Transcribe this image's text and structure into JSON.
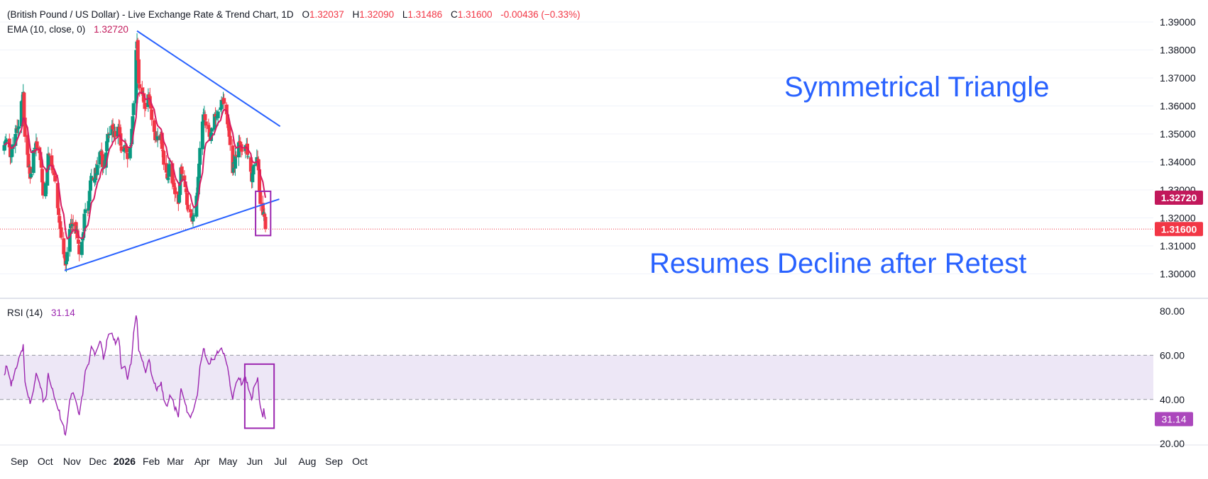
{
  "header": {
    "title": "(British Pound / US Dollar) - Live Exchange Rate & Trend Chart, 1D",
    "o_label": "O",
    "o_value": "1.32037",
    "h_label": "H",
    "h_value": "1.32090",
    "l_label": "L",
    "l_value": "1.31486",
    "c_label": "C",
    "c_value": "1.31600",
    "change": "-0.00436 (−0.33%)",
    "ema_label": "EMA (10, close, 0)",
    "ema_value": "1.32720",
    "rsi_label": "RSI (14)",
    "rsi_value": "31.14"
  },
  "annotations": {
    "triangle": "Symmetrical Triangle",
    "decline": "Resumes Decline after Retest"
  },
  "price_tags": {
    "ema": "1.32720",
    "last": "1.31600"
  },
  "rsi_tag": "31.14",
  "colors": {
    "up": "#089981",
    "down": "#F23645",
    "ema": "#D81B60",
    "trendline": "#2962FF",
    "rsi": "#9C27B0",
    "rsi_band": "#EDE7F6",
    "ema_tag": "#C2185B",
    "last_tag": "#F23645",
    "box": "#9C27B0"
  },
  "chart_data": [
    {
      "type": "candlestick",
      "title": "(British Pound / US Dollar) - Live Exchange Rate & Trend Chart, 1D",
      "y_axis": {
        "ticks": [
          "1.30000",
          "1.31000",
          "1.32000",
          "1.33000",
          "1.34000",
          "1.35000",
          "1.36000",
          "1.37000",
          "1.38000",
          "1.39000"
        ],
        "range": [
          1.295,
          1.3925
        ]
      },
      "x_axis": {
        "ticks": [
          "Sep",
          "Oct",
          "Nov",
          "Dec",
          "2026",
          "Feb",
          "Mar",
          "Apr",
          "May",
          "Jun",
          "Jul",
          "Aug",
          "Sep",
          "Oct"
        ]
      },
      "ema_period": 10,
      "last_close": 1.316,
      "ema_last": 1.3272,
      "trendlines": [
        {
          "name": "upper",
          "from": [
            "Jan 27 2026",
            1.3868
          ],
          "to": [
            "Jul 12 2026",
            1.3527
          ]
        },
        {
          "name": "lower",
          "from": [
            "Nov 4 2025",
            1.3012
          ],
          "to": [
            "Jul 11 2026",
            1.3267
          ]
        }
      ],
      "close_anchors": [
        [
          "Aug 26 2025",
          1.346
        ],
        [
          "Aug 29 2025",
          1.348
        ],
        [
          "Sep 3 2025",
          1.342
        ],
        [
          "Sep 8 2025",
          1.35
        ],
        [
          "Sep 11 2025",
          1.352
        ],
        [
          "Sep 16 2025",
          1.362
        ],
        [
          "Sep 17 2025",
          1.365
        ],
        [
          "Sep 19 2025",
          1.349
        ],
        [
          "Sep 25 2025",
          1.334
        ],
        [
          "Sep 30 2025",
          1.345
        ],
        [
          "Oct 2 2025",
          1.347
        ],
        [
          "Oct 8 2025",
          1.338
        ],
        [
          "Oct 10 2025",
          1.328
        ],
        [
          "Oct 14 2025",
          1.332
        ],
        [
          "Oct 16 2025",
          1.343
        ],
        [
          "Oct 21 2025",
          1.337
        ],
        [
          "Oct 24 2025",
          1.333
        ],
        [
          "Oct 28 2025",
          1.321
        ],
        [
          "Nov 3 2025",
          1.307
        ],
        [
          "Nov 5 2025",
          1.303
        ],
        [
          "Nov 10 2025",
          1.316
        ],
        [
          "Nov 14 2025",
          1.318
        ],
        [
          "Nov 18 2025",
          1.316
        ],
        [
          "Nov 21 2025",
          1.307
        ],
        [
          "Nov 25 2025",
          1.313
        ],
        [
          "Nov 28 2025",
          1.323
        ],
        [
          "Dec 2 2025",
          1.326
        ],
        [
          "Dec 5 2025",
          1.335
        ],
        [
          "Dec 9 2025",
          1.334
        ],
        [
          "Dec 12 2025",
          1.339
        ],
        [
          "Dec 16 2025",
          1.344
        ],
        [
          "Dec 19 2025",
          1.338
        ],
        [
          "Dec 24 2025",
          1.35
        ],
        [
          "Dec 29 2025",
          1.353
        ],
        [
          "Jan 2 2026",
          1.349
        ],
        [
          "Jan 6 2026",
          1.352
        ],
        [
          "Jan 9 2026",
          1.344
        ],
        [
          "Jan 13 2026",
          1.346
        ],
        [
          "Jan 16 2026",
          1.341
        ],
        [
          "Jan 20 2026",
          1.346
        ],
        [
          "Jan 23 2026",
          1.361
        ],
        [
          "Jan 26 2026",
          1.38
        ],
        [
          "Jan 27 2026",
          1.383
        ],
        [
          "Jan 29 2026",
          1.368
        ],
        [
          "Feb 3 2026",
          1.364
        ],
        [
          "Feb 6 2026",
          1.359
        ],
        [
          "Feb 10 2026",
          1.363
        ],
        [
          "Feb 13 2026",
          1.355
        ],
        [
          "Feb 18 2026",
          1.348
        ],
        [
          "Feb 24 2026",
          1.35
        ],
        [
          "Feb 27 2026",
          1.339
        ],
        [
          "Mar 3 2026",
          1.334
        ],
        [
          "Mar 6 2026",
          1.339
        ],
        [
          "Mar 11 2026",
          1.331
        ],
        [
          "Mar 16 2026",
          1.325
        ],
        [
          "Mar 19 2026",
          1.338
        ],
        [
          "Mar 24 2026",
          1.331
        ],
        [
          "Mar 27 2026",
          1.323
        ],
        [
          "Mar 31 2026",
          1.32
        ],
        [
          "Apr 3 2026",
          1.321
        ],
        [
          "Apr 7 2026",
          1.329
        ],
        [
          "Apr 10 2026",
          1.345
        ],
        [
          "Apr 14 2026",
          1.357
        ],
        [
          "Apr 17 2026",
          1.353
        ],
        [
          "Apr 21 2026",
          1.349
        ],
        [
          "Apr 24 2026",
          1.352
        ],
        [
          "Apr 28 2026",
          1.356
        ],
        [
          "May 1 2026",
          1.358
        ],
        [
          "May 6 2026",
          1.362
        ],
        [
          "May 11 2026",
          1.357
        ],
        [
          "May 14 2026",
          1.349
        ],
        [
          "May 18 2026",
          1.336
        ],
        [
          "May 21 2026",
          1.342
        ],
        [
          "May 26 2026",
          1.347
        ],
        [
          "May 29 2026",
          1.344
        ],
        [
          "Jun 2 2026",
          1.346
        ],
        [
          "Jun 5 2026",
          1.342
        ],
        [
          "Jun 9 2026",
          1.333
        ],
        [
          "Jun 12 2026",
          1.339
        ],
        [
          "Jun 16 2026",
          1.341
        ],
        [
          "Jun 17 2026",
          1.337
        ],
        [
          "Jun 19 2026",
          1.325
        ],
        [
          "Jun 22 2026",
          1.321
        ],
        [
          "Jun 23 2026",
          1.322
        ],
        [
          "Jun 24 2026",
          1.3204
        ],
        [
          "Jun 25 2026",
          1.316
        ]
      ]
    },
    {
      "type": "line",
      "title": "RSI (14)",
      "y_axis": {
        "ticks": [
          "20.00",
          "40.00",
          "60.00",
          "80.00"
        ],
        "range": [
          18,
          84
        ]
      },
      "bands": [
        40,
        60
      ],
      "last_value": 31.14,
      "series": [
        {
          "name": "RSI (14)",
          "values": [
            [
              "Aug 26 2025",
              51
            ],
            [
              "Aug 29 2025",
              55
            ],
            [
              "Sep 3 2025",
              46
            ],
            [
              "Sep 8 2025",
              54
            ],
            [
              "Sep 11 2025",
              57
            ],
            [
              "Sep 16 2025",
              62
            ],
            [
              "Sep 17 2025",
              65
            ],
            [
              "Sep 19 2025",
              48
            ],
            [
              "Sep 25 2025",
              38
            ],
            [
              "Sep 30 2025",
              47
            ],
            [
              "Oct 2 2025",
              52
            ],
            [
              "Oct 8 2025",
              45
            ],
            [
              "Oct 10 2025",
              39
            ],
            [
              "Oct 14 2025",
              42
            ],
            [
              "Oct 16 2025",
              52
            ],
            [
              "Oct 21 2025",
              45
            ],
            [
              "Oct 24 2025",
              40
            ],
            [
              "Oct 28 2025",
              35
            ],
            [
              "Nov 3 2025",
              28
            ],
            [
              "Nov 5 2025",
              24
            ],
            [
              "Nov 10 2025",
              40
            ],
            [
              "Nov 14 2025",
              43
            ],
            [
              "Nov 18 2025",
              38
            ],
            [
              "Nov 21 2025",
              33
            ],
            [
              "Nov 25 2025",
              42
            ],
            [
              "Nov 28 2025",
              53
            ],
            [
              "Dec 2 2025",
              56
            ],
            [
              "Dec 5 2025",
              64
            ],
            [
              "Dec 9 2025",
              60
            ],
            [
              "Dec 12 2025",
              63
            ],
            [
              "Dec 16 2025",
              66
            ],
            [
              "Dec 19 2025",
              58
            ],
            [
              "Dec 24 2025",
              68
            ],
            [
              "Dec 29 2025",
              70
            ],
            [
              "Jan 2 2026",
              65
            ],
            [
              "Jan 6 2026",
              67
            ],
            [
              "Jan 9 2026",
              54
            ],
            [
              "Jan 13 2026",
              55
            ],
            [
              "Jan 16 2026",
              49
            ],
            [
              "Jan 20 2026",
              56
            ],
            [
              "Jan 23 2026",
              70
            ],
            [
              "Jan 26 2026",
              78
            ],
            [
              "Jan 27 2026",
              76
            ],
            [
              "Jan 29 2026",
              62
            ],
            [
              "Feb 3 2026",
              57
            ],
            [
              "Feb 6 2026",
              52
            ],
            [
              "Feb 10 2026",
              58
            ],
            [
              "Feb 13 2026",
              51
            ],
            [
              "Feb 18 2026",
              45
            ],
            [
              "Feb 24 2026",
              48
            ],
            [
              "Feb 27 2026",
              40
            ],
            [
              "Mar 3 2026",
              37
            ],
            [
              "Mar 6 2026",
              42
            ],
            [
              "Mar 11 2026",
              37
            ],
            [
              "Mar 16 2026",
              32
            ],
            [
              "Mar 19 2026",
              45
            ],
            [
              "Mar 24 2026",
              38
            ],
            [
              "Mar 27 2026",
              34
            ],
            [
              "Mar 31 2026",
              33
            ],
            [
              "Apr 3 2026",
              36
            ],
            [
              "Apr 7 2026",
              42
            ],
            [
              "Apr 10 2026",
              55
            ],
            [
              "Apr 14 2026",
              63
            ],
            [
              "Apr 17 2026",
              59
            ],
            [
              "Apr 21 2026",
              56
            ],
            [
              "Apr 24 2026",
              58
            ],
            [
              "Apr 28 2026",
              60
            ],
            [
              "May 1 2026",
              61
            ],
            [
              "May 6 2026",
              62
            ],
            [
              "May 11 2026",
              56
            ],
            [
              "May 14 2026",
              50
            ],
            [
              "May 18 2026",
              40
            ],
            [
              "May 21 2026",
              46
            ],
            [
              "May 26 2026",
              49
            ],
            [
              "May 29 2026",
              47
            ],
            [
              "Jun 2 2026",
              50
            ],
            [
              "Jun 5 2026",
              45
            ],
            [
              "Jun 9 2026",
              40
            ],
            [
              "Jun 12 2026",
              46
            ],
            [
              "Jun 16 2026",
              50
            ],
            [
              "Jun 17 2026",
              45
            ],
            [
              "Jun 19 2026",
              37
            ],
            [
              "Jun 22 2026",
              32
            ],
            [
              "Jun 23 2026",
              36
            ],
            [
              "Jun 24 2026",
              33
            ],
            [
              "Jun 25 2026",
              31.14
            ]
          ]
        }
      ]
    }
  ]
}
